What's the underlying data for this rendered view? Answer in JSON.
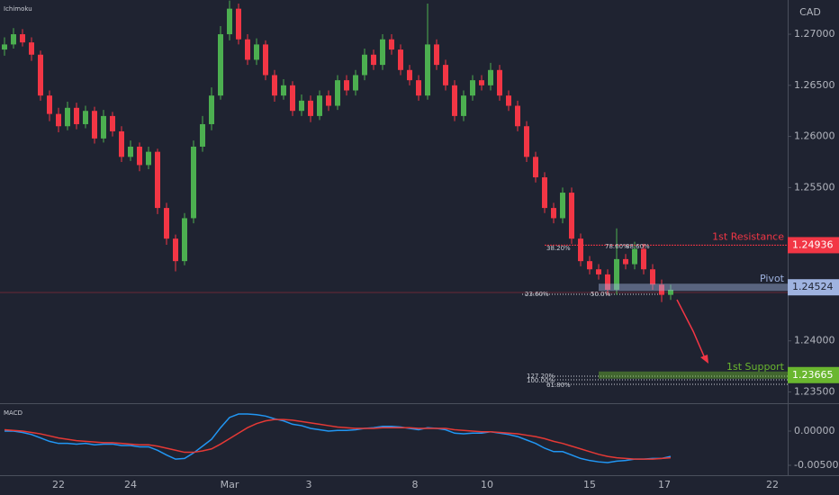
{
  "chart_data": [
    {
      "type": "candlestick",
      "indicator": "Ichimoku",
      "y_axis_label": "CAD",
      "up_color": "#4caf50",
      "down_color": "#f23645",
      "open": [
        1.2685,
        1.269,
        1.27,
        1.2692,
        1.268,
        1.264,
        1.2622,
        1.261,
        1.2628,
        1.2612,
        1.2625,
        1.2598,
        1.262,
        1.2605,
        1.258,
        1.259,
        1.2572,
        1.2585,
        1.253,
        1.25,
        1.2478,
        1.252,
        1.259,
        1.2612,
        1.264,
        1.27,
        1.2725,
        1.2695,
        1.2675,
        1.269,
        1.266,
        1.264,
        1.265,
        1.2625,
        1.2635,
        1.262,
        1.264,
        1.263,
        1.2655,
        1.2645,
        1.266,
        1.268,
        1.267,
        1.2695,
        1.2685,
        1.2665,
        1.2655,
        1.264,
        1.269,
        1.267,
        1.265,
        1.262,
        1.264,
        1.2655,
        1.265,
        1.2665,
        1.264,
        1.263,
        1.261,
        1.258,
        1.256,
        1.253,
        1.252,
        1.2545,
        1.25,
        1.2478,
        1.247,
        1.2465,
        1.245,
        1.248,
        1.2475,
        1.249,
        1.247,
        1.2455,
        1.2445
      ],
      "high": [
        1.2697,
        1.2706,
        1.2705,
        1.2697,
        1.2684,
        1.2645,
        1.2628,
        1.2634,
        1.2633,
        1.263,
        1.2629,
        1.2626,
        1.2624,
        1.261,
        1.2596,
        1.2594,
        1.259,
        1.2588,
        1.2535,
        1.2504,
        1.2525,
        1.2596,
        1.262,
        1.2648,
        1.2708,
        1.2733,
        1.273,
        1.27,
        1.2696,
        1.2694,
        1.2665,
        1.2656,
        1.2654,
        1.2641,
        1.264,
        1.2645,
        1.2645,
        1.266,
        1.266,
        1.2665,
        1.2686,
        1.2685,
        1.27,
        1.27,
        1.269,
        1.267,
        1.266,
        1.273,
        1.2695,
        1.2675,
        1.2655,
        1.2645,
        1.266,
        1.266,
        1.2672,
        1.267,
        1.2645,
        1.2635,
        1.2615,
        1.2585,
        1.2565,
        1.2535,
        1.255,
        1.255,
        1.2505,
        1.2483,
        1.2475,
        1.247,
        1.251,
        1.2485,
        1.2497,
        1.2495,
        1.2475,
        1.246,
        1.2455
      ],
      "low": [
        1.2679,
        1.2686,
        1.2688,
        1.2674,
        1.2635,
        1.2615,
        1.2604,
        1.2606,
        1.2607,
        1.2608,
        1.2593,
        1.2594,
        1.26,
        1.2575,
        1.2576,
        1.2566,
        1.2568,
        1.2524,
        1.2494,
        1.2468,
        1.2474,
        1.2515,
        1.2585,
        1.2606,
        1.2636,
        1.2694,
        1.269,
        1.267,
        1.267,
        1.2655,
        1.2634,
        1.2636,
        1.262,
        1.262,
        1.2614,
        1.2616,
        1.2625,
        1.2626,
        1.264,
        1.264,
        1.2655,
        1.2665,
        1.2665,
        1.268,
        1.266,
        1.265,
        1.2635,
        1.2636,
        1.2665,
        1.2645,
        1.2615,
        1.2615,
        1.2635,
        1.2645,
        1.2645,
        1.2635,
        1.2625,
        1.2605,
        1.2575,
        1.2555,
        1.2525,
        1.2515,
        1.2515,
        1.2495,
        1.2473,
        1.2465,
        1.246,
        1.2445,
        1.2445,
        1.247,
        1.247,
        1.2465,
        1.245,
        1.2438,
        1.244
      ],
      "close": [
        1.269,
        1.27,
        1.2692,
        1.268,
        1.264,
        1.2622,
        1.261,
        1.2628,
        1.2612,
        1.2625,
        1.2598,
        1.262,
        1.2605,
        1.258,
        1.259,
        1.2572,
        1.2585,
        1.253,
        1.25,
        1.2478,
        1.252,
        1.259,
        1.2612,
        1.264,
        1.27,
        1.2725,
        1.2695,
        1.2675,
        1.269,
        1.266,
        1.264,
        1.265,
        1.2625,
        1.2635,
        1.262,
        1.264,
        1.263,
        1.2655,
        1.2645,
        1.266,
        1.268,
        1.267,
        1.2695,
        1.2685,
        1.2665,
        1.2655,
        1.264,
        1.269,
        1.267,
        1.265,
        1.262,
        1.264,
        1.2655,
        1.265,
        1.2665,
        1.264,
        1.263,
        1.261,
        1.258,
        1.256,
        1.253,
        1.252,
        1.2545,
        1.25,
        1.2478,
        1.247,
        1.2465,
        1.245,
        1.248,
        1.2475,
        1.249,
        1.247,
        1.2455,
        1.2445,
        1.245
      ],
      "xlim": [
        -0.5,
        87
      ],
      "xticks": [
        {
          "value": 6,
          "label": "22"
        },
        {
          "value": 14,
          "label": "24"
        },
        {
          "value": 25,
          "label": "Mar"
        },
        {
          "value": 33.8,
          "label": "3"
        },
        {
          "value": 45.6,
          "label": "8"
        },
        {
          "value": 53.6,
          "label": "10"
        },
        {
          "value": 65,
          "label": "15"
        },
        {
          "value": 73.3,
          "label": "17"
        },
        {
          "value": 85.3,
          "label": "22"
        }
      ],
      "ylim": [
        1.2339,
        1.27335
      ],
      "yticks": [
        {
          "value": 1.27,
          "label": "1.27000"
        },
        {
          "value": 1.265,
          "label": "1.26500"
        },
        {
          "value": 1.26,
          "label": "1.26000"
        },
        {
          "value": 1.255,
          "label": "1.25500"
        },
        {
          "value": 1.24,
          "label": "1.24000"
        },
        {
          "value": 1.235,
          "label": "1.23500"
        }
      ],
      "levels": [
        {
          "name": "1st Resistance",
          "value": 1.24936,
          "color": "#f23645"
        },
        {
          "name": "Pivot",
          "value": 1.24524,
          "color": "#9fb3e0"
        },
        {
          "name": "1st Support",
          "value": 1.23665,
          "color": "#6ab72f"
        }
      ],
      "annotations": [
        "38.20%",
        "78.60%",
        "88.60%",
        "23.60%",
        "50.0%",
        "127.20%",
        "100.00%",
        "61.80%"
      ]
    },
    {
      "type": "line",
      "title": "MACD",
      "series": [
        {
          "color": "#2196f3",
          "values": [
            0.0,
            0.0,
            -0.0002,
            -0.0005,
            -0.001,
            -0.0015,
            -0.0018,
            -0.0018,
            -0.0019,
            -0.0018,
            -0.002,
            -0.0019,
            -0.0019,
            -0.0021,
            -0.0021,
            -0.0023,
            -0.0023,
            -0.0028,
            -0.0035,
            -0.0041,
            -0.004,
            -0.0032,
            -0.0022,
            -0.0012,
            0.0005,
            0.002,
            0.0025,
            0.0025,
            0.0024,
            0.0022,
            0.0018,
            0.0015,
            0.001,
            0.0008,
            0.0004,
            0.0002,
            0.0,
            0.0001,
            0.0001,
            0.0002,
            0.0004,
            0.0005,
            0.0007,
            0.0007,
            0.0006,
            0.0004,
            0.0002,
            0.0005,
            0.0004,
            0.0002,
            -0.0003,
            -0.0004,
            -0.0003,
            -0.0003,
            -0.0001,
            -0.0003,
            -0.0005,
            -0.0008,
            -0.0013,
            -0.0018,
            -0.0025,
            -0.003,
            -0.003,
            -0.0035,
            -0.004,
            -0.0043,
            -0.0045,
            -0.0046,
            -0.0044,
            -0.0043,
            -0.0041,
            -0.0041,
            -0.004,
            -0.004,
            -0.0037
          ]
        },
        {
          "color": "#e53935",
          "values": [
            0.0002,
            0.0001,
            0.0,
            -0.0002,
            -0.0004,
            -0.0007,
            -0.001,
            -0.0012,
            -0.0014,
            -0.0015,
            -0.0016,
            -0.0017,
            -0.0017,
            -0.0018,
            -0.0019,
            -0.002,
            -0.002,
            -0.0022,
            -0.0025,
            -0.0028,
            -0.0031,
            -0.0031,
            -0.0029,
            -0.0026,
            -0.0019,
            -0.0011,
            -0.0003,
            0.0005,
            0.0011,
            0.0015,
            0.0017,
            0.0017,
            0.0016,
            0.0014,
            0.0012,
            0.001,
            0.0008,
            0.0006,
            0.0005,
            0.0004,
            0.0004,
            0.0004,
            0.0005,
            0.0005,
            0.0005,
            0.0005,
            0.0004,
            0.0004,
            0.0004,
            0.0004,
            0.0002,
            0.0001,
            0.0,
            -0.0001,
            -0.0001,
            -0.0002,
            -0.0003,
            -0.0004,
            -0.0006,
            -0.0008,
            -0.0011,
            -0.0015,
            -0.0018,
            -0.0022,
            -0.0026,
            -0.003,
            -0.0034,
            -0.0037,
            -0.0039,
            -0.004,
            -0.0041,
            -0.0041,
            -0.0041,
            -0.004,
            -0.0039
          ]
        }
      ],
      "ylim": [
        -0.00645,
        0.00382
      ],
      "yticks": [
        {
          "value": 0,
          "label": "0.00000"
        },
        {
          "value": -0.005,
          "label": "-0.00500"
        }
      ]
    }
  ]
}
